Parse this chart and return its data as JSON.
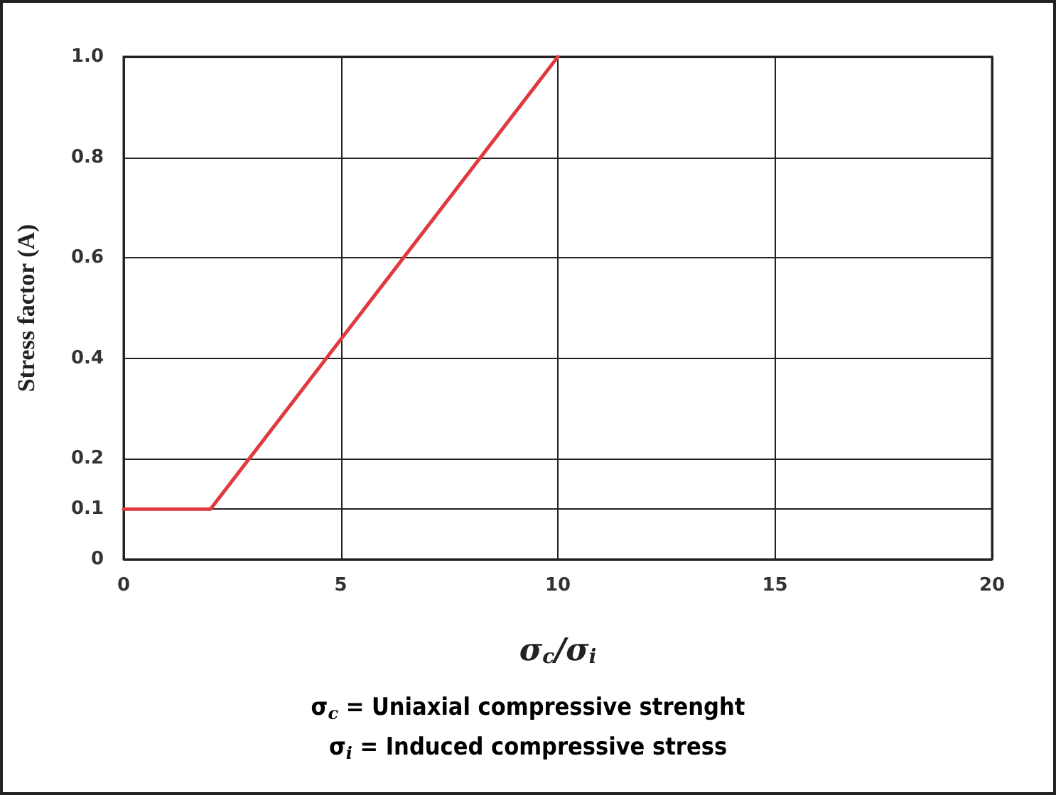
{
  "chart_data": {
    "type": "line",
    "xlabel": "σ$_{c}$/σ$_{i}$",
    "ylabel": "Stress factor (A)",
    "x": [
      0,
      2,
      10
    ],
    "series": [
      {
        "color": "#e0393e",
        "values": [
          0.1,
          0.1,
          1.0
        ]
      }
    ],
    "xlim": [
      0,
      20
    ],
    "xticks": [
      0,
      5,
      10,
      15,
      20
    ],
    "ylim": [
      0,
      1.0
    ],
    "yticks": [
      0,
      0.1,
      0.2,
      0.4,
      0.6,
      0.8,
      {
        "value": 1.0,
        "label": "1.0"
      }
    ],
    "grid": true,
    "marker": "none",
    "line_style": "solid",
    "annotations": [
      "σ$_{c}$ = Uniaxial compressive strenght",
      "σ$_{i}$ = Induced compressive stress"
    ]
  }
}
